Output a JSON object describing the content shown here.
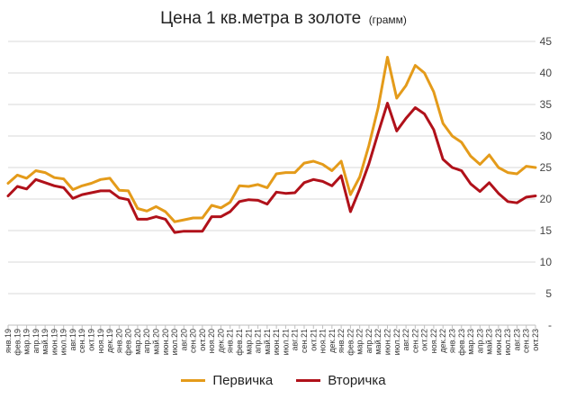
{
  "title": "Цена 1 кв.метра в золоте",
  "subtitle": "(грамм)",
  "colors": {
    "primary": "#E49B1A",
    "secondary": "#B0111A",
    "grid": "#d9d9d9",
    "axis": "#bfbfbf"
  },
  "chart_data": {
    "type": "line",
    "title": "Цена 1 кв.метра в золоте (грамм)",
    "xlabel": "",
    "ylabel": "",
    "ylim": [
      0,
      45
    ],
    "y_ticks": [
      "-",
      "5",
      "10",
      "15",
      "20",
      "25",
      "30",
      "35",
      "40",
      "45"
    ],
    "y_tick_values": [
      0,
      5,
      10,
      15,
      20,
      25,
      30,
      35,
      40,
      45
    ],
    "y_axis_position": "right",
    "grid": true,
    "legend_position": "bottom",
    "categories": [
      "янв.19",
      "фев.19",
      "мар.19",
      "апр.19",
      "май.19",
      "июн.19",
      "июл.19",
      "авг.19",
      "сен.19",
      "окт.19",
      "ноя.19",
      "дек.19",
      "янв.20",
      "фев.20",
      "мар.20",
      "апр.20",
      "май.20",
      "июн.20",
      "июл.20",
      "авг.20",
      "сен.20",
      "окт.20",
      "ноя.20",
      "дек.20",
      "янв.21",
      "фев.21",
      "мар.21",
      "апр.21",
      "май.21",
      "июн.21",
      "июл.21",
      "авг.21",
      "сен.21",
      "окт.21",
      "ноя.21",
      "дек.21",
      "янв.22",
      "фев.22",
      "мар.22",
      "апр.22",
      "май.22",
      "июн.22",
      "июл.22",
      "авг.22",
      "сен.22",
      "окт.22",
      "ноя.22",
      "дек.22",
      "янв.23",
      "фев.23",
      "мар.23",
      "апр.23",
      "май.23",
      "июн.23",
      "июл.23",
      "авг.23",
      "сен.23",
      "окт.23"
    ],
    "series": [
      {
        "name": "Первичка",
        "color": "#E49B1A",
        "values": [
          22.5,
          23.8,
          23.3,
          24.5,
          24.2,
          23.4,
          23.2,
          21.5,
          22.1,
          22.5,
          23.1,
          23.3,
          21.4,
          21.3,
          18.5,
          18.1,
          18.8,
          18.0,
          16.4,
          16.7,
          17.0,
          17.0,
          19.0,
          18.6,
          19.5,
          22.1,
          22.0,
          22.3,
          21.8,
          24.0,
          24.2,
          24.2,
          25.7,
          26.0,
          25.5,
          24.5,
          26.0,
          20.7,
          23.5,
          28.5,
          34.5,
          42.5,
          36.0,
          38.0,
          41.2,
          40.0,
          37.0,
          32.0,
          30.0,
          29.0,
          26.8,
          25.5,
          27.0,
          25.0,
          24.2,
          24.0,
          25.2,
          25.0
        ]
      },
      {
        "name": "Вторичка",
        "color": "#B0111A",
        "values": [
          20.5,
          22.0,
          21.6,
          23.1,
          22.6,
          22.1,
          21.8,
          20.1,
          20.7,
          21.0,
          21.3,
          21.3,
          20.2,
          19.9,
          16.8,
          16.8,
          17.2,
          16.8,
          14.7,
          14.9,
          14.9,
          14.9,
          17.2,
          17.2,
          18.0,
          19.6,
          19.9,
          19.8,
          19.2,
          21.1,
          20.9,
          21.0,
          22.6,
          23.1,
          22.8,
          22.1,
          23.7,
          18.0,
          21.6,
          25.6,
          30.5,
          35.2,
          30.8,
          32.8,
          34.5,
          33.5,
          31.0,
          26.3,
          25.0,
          24.5,
          22.4,
          21.2,
          22.6,
          20.9,
          19.6,
          19.4,
          20.3,
          20.5
        ]
      }
    ]
  }
}
